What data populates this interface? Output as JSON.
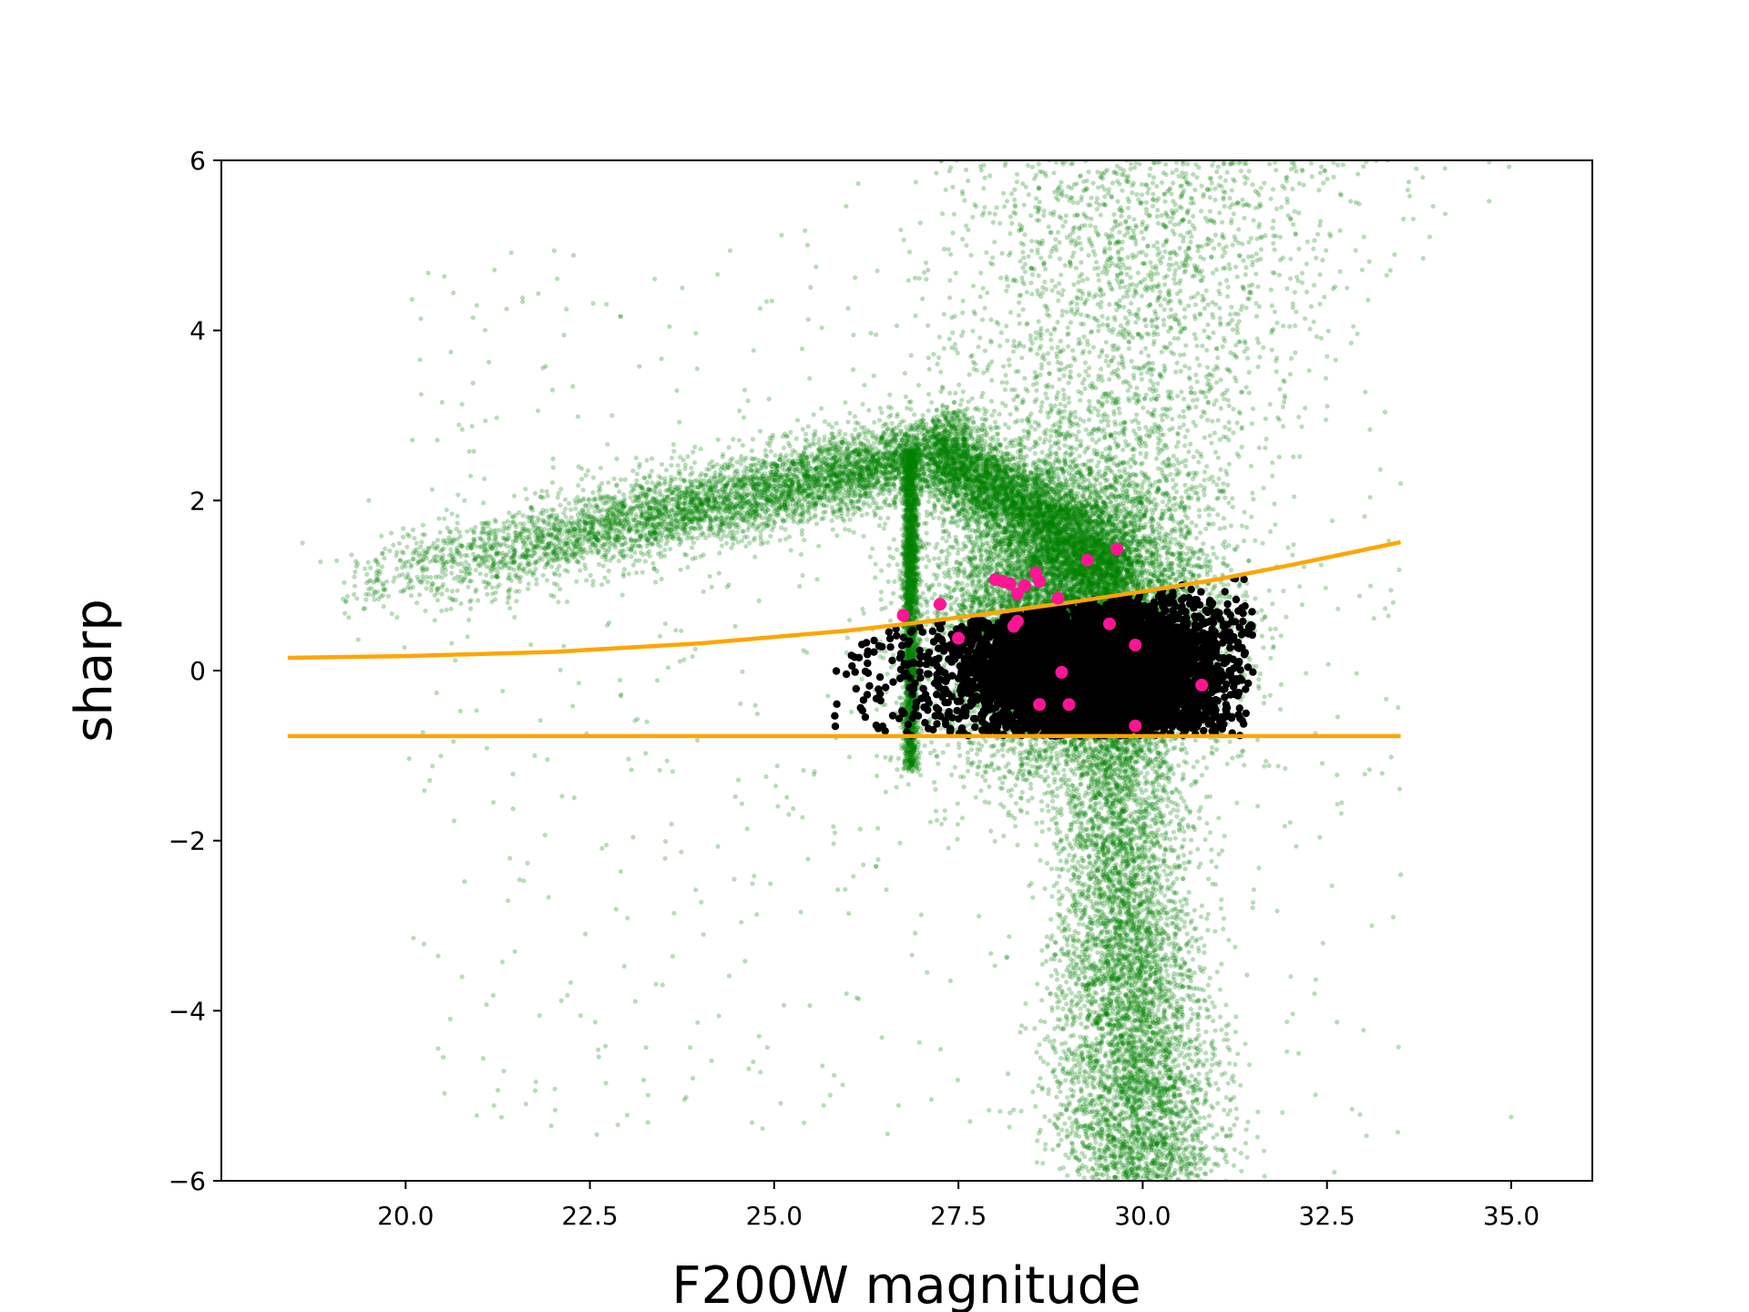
{
  "chart_data": {
    "type": "scatter",
    "title": "",
    "xlabel": "F200W magnitude",
    "ylabel": "sharp",
    "xlim": [
      17.5,
      36.1
    ],
    "ylim": [
      -6,
      6
    ],
    "x_ticks": [
      20.0,
      22.5,
      25.0,
      27.5,
      30.0,
      32.5,
      35.0
    ],
    "x_tick_labels": [
      "20.0",
      "22.5",
      "25.0",
      "27.5",
      "30.0",
      "32.5",
      "35.0"
    ],
    "y_ticks": [
      -6,
      -4,
      -2,
      0,
      2,
      4,
      6
    ],
    "y_tick_labels": [
      "−6",
      "−4",
      "−2",
      "0",
      "2",
      "4",
      "6"
    ],
    "grid": false,
    "legend": "none",
    "colors": {
      "all_sources": "#008000",
      "selected_sources": "#000000",
      "highlighted_sources": "#ff1493",
      "cut_lines": "#ffa500"
    },
    "series": [
      {
        "role": "all-sources",
        "marker": "small translucent green dots",
        "approx_count": 40000,
        "density_components": [
          {
            "kind": "upper-left branch",
            "x_range": [
              19.0,
              27.5
            ],
            "y_trend": [
              1.0,
              2.6
            ],
            "spread": 0.3
          },
          {
            "kind": "vertical streak",
            "x_center": 26.85,
            "x_spread": 0.06,
            "y_range": [
              -1.2,
              2.6
            ]
          },
          {
            "kind": "central clump",
            "x_center": 29.0,
            "y_center": 0.6,
            "x_spread": 0.9,
            "y_spread": 0.9
          },
          {
            "kind": "lower tail",
            "x_range": [
              29.0,
              30.8
            ],
            "y_range": [
              -6.0,
              -0.5
            ]
          },
          {
            "kind": "upper plume",
            "x_range": [
              27.5,
              33.5
            ],
            "y_range": [
              2.0,
              6.0
            ]
          }
        ],
        "points": [
          {
            "x": 27.2,
            "y": 5.85
          },
          {
            "x": 25.1,
            "y": 5.12
          },
          {
            "x": 29.8,
            "y": 5.55
          },
          {
            "x": 30.8,
            "y": 5.7
          },
          {
            "x": 31.3,
            "y": 5.5
          },
          {
            "x": 33.8,
            "y": 5.8
          },
          {
            "x": 34.7,
            "y": 5.52
          },
          {
            "x": 33.0,
            "y": 5.1
          },
          {
            "x": 35.0,
            "y": -5.25
          },
          {
            "x": 33.5,
            "y": 2.2
          },
          {
            "x": 32.6,
            "y": -5.9
          },
          {
            "x": 24.6,
            "y": 3.3
          },
          {
            "x": 26.4,
            "y": 4.7
          },
          {
            "x": 22.8,
            "y": 3.0
          },
          {
            "x": 18.6,
            "y": 1.5
          },
          {
            "x": 19.5,
            "y": 2.0
          },
          {
            "x": 20.8,
            "y": 2.0
          },
          {
            "x": 28.6,
            "y": -4.4
          },
          {
            "x": 33.5,
            "y": -2.4
          },
          {
            "x": 33.4,
            "y": -2.9
          },
          {
            "x": 28.2,
            "y": -5.2
          },
          {
            "x": 33.4,
            "y": 0.8
          }
        ]
      },
      {
        "role": "selected-sources",
        "marker": "black dots",
        "approx_count": 6000,
        "x_range": [
          25.8,
          31.5
        ],
        "y_lower": -0.77,
        "y_upper_curve": "upper-cut",
        "density_peak": {
          "x": 29.3,
          "y": 0.0
        }
      },
      {
        "role": "highlighted-sources",
        "marker": "deep pink dots",
        "points": [
          {
            "x": 26.75,
            "y": 0.65
          },
          {
            "x": 27.25,
            "y": 0.78
          },
          {
            "x": 27.5,
            "y": 0.38
          },
          {
            "x": 28.0,
            "y": 1.07
          },
          {
            "x": 28.1,
            "y": 1.05
          },
          {
            "x": 28.2,
            "y": 1.02
          },
          {
            "x": 28.3,
            "y": 0.9
          },
          {
            "x": 28.4,
            "y": 1.0
          },
          {
            "x": 28.55,
            "y": 1.15
          },
          {
            "x": 28.6,
            "y": 1.05
          },
          {
            "x": 28.3,
            "y": 0.58
          },
          {
            "x": 28.25,
            "y": 0.52
          },
          {
            "x": 28.85,
            "y": 0.85
          },
          {
            "x": 29.25,
            "y": 1.3
          },
          {
            "x": 29.65,
            "y": 1.43
          },
          {
            "x": 29.55,
            "y": 0.55
          },
          {
            "x": 28.9,
            "y": -0.02
          },
          {
            "x": 28.6,
            "y": -0.4
          },
          {
            "x": 29.0,
            "y": -0.4
          },
          {
            "x": 29.9,
            "y": 0.3
          },
          {
            "x": 29.9,
            "y": -0.65
          },
          {
            "x": 30.8,
            "y": -0.17
          }
        ]
      }
    ],
    "lines": [
      {
        "role": "upper-cut",
        "style": "curve",
        "points": [
          {
            "x": 18.4,
            "y": 0.15
          },
          {
            "x": 20.0,
            "y": 0.17
          },
          {
            "x": 22.0,
            "y": 0.22
          },
          {
            "x": 24.0,
            "y": 0.32
          },
          {
            "x": 26.0,
            "y": 0.47
          },
          {
            "x": 27.0,
            "y": 0.57
          },
          {
            "x": 28.0,
            "y": 0.68
          },
          {
            "x": 29.0,
            "y": 0.8
          },
          {
            "x": 30.0,
            "y": 0.93
          },
          {
            "x": 31.0,
            "y": 1.07
          },
          {
            "x": 32.0,
            "y": 1.24
          },
          {
            "x": 33.0,
            "y": 1.42
          },
          {
            "x": 33.5,
            "y": 1.51
          }
        ]
      },
      {
        "role": "lower-cut",
        "style": "flat",
        "points": [
          {
            "x": 18.4,
            "y": -0.77
          },
          {
            "x": 33.5,
            "y": -0.77
          }
        ]
      }
    ]
  }
}
